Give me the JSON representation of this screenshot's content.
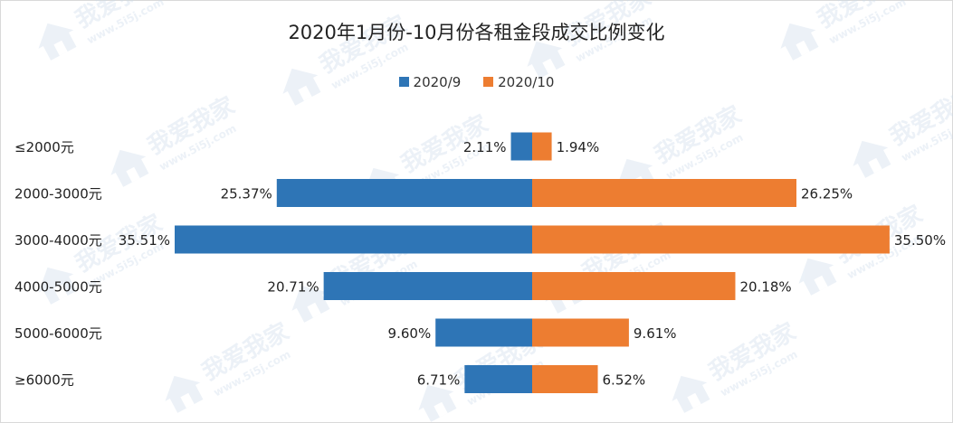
{
  "colors": {
    "series_a": "#2e75b6",
    "series_b": "#ed7d31",
    "text": "#222222",
    "watermark": "#c9d9ea"
  },
  "watermark": {
    "text": "我爱我家",
    "url": "www.5i5j.com",
    "icon": "house-logo-icon"
  },
  "chart_data": {
    "type": "bar",
    "orientation": "horizontal-butterfly",
    "title": "2020年1月份-10月份各租金段成交比例变化",
    "legend_position": "top",
    "grid": false,
    "categories": [
      "≤2000元",
      "2000-3000元",
      "3000-4000元",
      "4000-5000元",
      "5000-6000元",
      "≥6000元"
    ],
    "series": [
      {
        "name": "2020/9",
        "values": [
          2.11,
          25.37,
          35.51,
          20.71,
          9.6,
          6.71
        ],
        "labels": [
          "2.11%",
          "25.37%",
          "35.51%",
          "20.71%",
          "9.60%",
          "6.71%"
        ]
      },
      {
        "name": "2020/10",
        "values": [
          1.94,
          26.25,
          35.5,
          20.18,
          9.61,
          6.52
        ],
        "labels": [
          "1.94%",
          "26.25%",
          "35.50%",
          "20.18%",
          "9.61%",
          "6.52%"
        ]
      }
    ],
    "xlim": [
      0,
      35.51
    ]
  }
}
